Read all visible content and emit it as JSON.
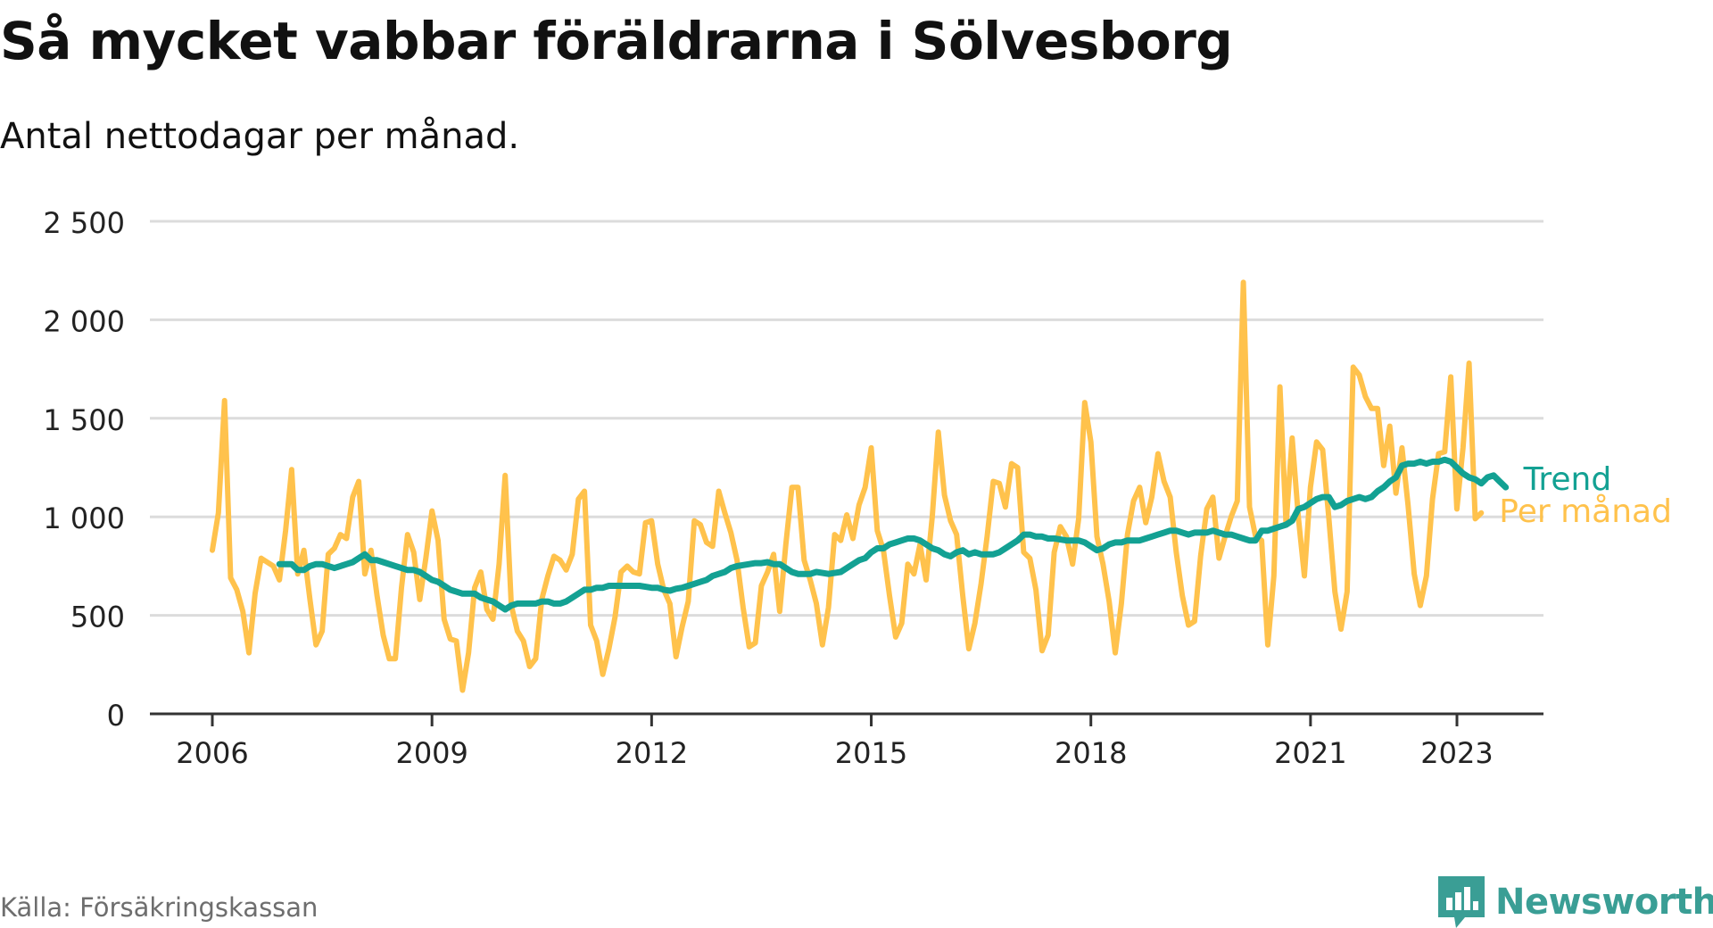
{
  "title": "Så mycket vabbar föräldrarna i Sölvesborg",
  "subtitle": "Antal nettodagar per månad.",
  "source": "Källa: Försäkringskassan",
  "brand": "Newsworthy",
  "colors": {
    "monthly": "#ffc24c",
    "trend": "#13a193",
    "grid": "#dcdcdc",
    "axis": "#333333",
    "brand": "#3a9e95"
  },
  "chart_data": {
    "type": "line",
    "title": "Så mycket vabbar föräldrarna i Sölvesborg",
    "ylabel": "Antal nettodagar per månad",
    "ylim": [
      0,
      2500
    ],
    "yticks": [
      0,
      500,
      1000,
      1500,
      2000,
      2500
    ],
    "ytick_labels": [
      "0",
      "500",
      "1 000",
      "1 500",
      "2 000",
      "2 500"
    ],
    "xlim": [
      2006.0,
      2023.5
    ],
    "xticks": [
      2006,
      2009,
      2012,
      2015,
      2018,
      2021,
      2023
    ],
    "xtick_labels": [
      "2006",
      "2009",
      "2012",
      "2015",
      "2018",
      "2021",
      "2023"
    ],
    "series": [
      {
        "name": "Per månad",
        "label": "Per månad",
        "x_start": 2006.0,
        "step": 0.08333,
        "values": [
          830,
          1020,
          1590,
          690,
          630,
          520,
          310,
          610,
          790,
          770,
          750,
          680,
          930,
          1240,
          710,
          830,
          580,
          350,
          420,
          810,
          840,
          910,
          890,
          1100,
          1180,
          710,
          830,
          600,
          400,
          280,
          280,
          640,
          910,
          820,
          580,
          790,
          1030,
          880,
          480,
          380,
          370,
          120,
          310,
          640,
          720,
          530,
          480,
          760,
          1210,
          550,
          420,
          370,
          240,
          280,
          580,
          700,
          800,
          780,
          730,
          810,
          1090,
          1130,
          450,
          370,
          200,
          330,
          490,
          720,
          750,
          720,
          710,
          970,
          980,
          760,
          630,
          560,
          290,
          440,
          570,
          980,
          960,
          870,
          850,
          1130,
          1020,
          920,
          780,
          540,
          340,
          360,
          650,
          720,
          810,
          520,
          860,
          1150,
          1150,
          780,
          680,
          560,
          350,
          540,
          910,
          880,
          1010,
          890,
          1060,
          1150,
          1350,
          930,
          830,
          600,
          390,
          460,
          760,
          710,
          860,
          680,
          1000,
          1430,
          1110,
          980,
          910,
          600,
          330,
          460,
          660,
          900,
          1180,
          1170,
          1050,
          1270,
          1250,
          820,
          790,
          630,
          320,
          400,
          820,
          950,
          900,
          760,
          990,
          1580,
          1380,
          900,
          760,
          570,
          310,
          560,
          910,
          1080,
          1150,
          970,
          1100,
          1320,
          1180,
          1100,
          820,
          600,
          450,
          470,
          800,
          1040,
          1100,
          790,
          900,
          1000,
          1080,
          2190,
          1050,
          900,
          880,
          350,
          700,
          1660,
          960,
          1400,
          1000,
          700,
          1150,
          1380,
          1340,
          1000,
          620,
          430,
          620,
          1760,
          1720,
          1610,
          1550,
          1550,
          1260,
          1460,
          1120,
          1350,
          1060,
          710,
          550,
          700,
          1090,
          1320,
          1330,
          1710,
          1040,
          1350,
          1780,
          990,
          1020
        ]
      },
      {
        "name": "Trend",
        "label": "Trend",
        "x_start": 2006.917,
        "step": 0.08333,
        "values": [
          760,
          760,
          760,
          730,
          730,
          750,
          760,
          760,
          750,
          740,
          750,
          760,
          770,
          790,
          810,
          780,
          780,
          770,
          760,
          750,
          740,
          730,
          730,
          720,
          700,
          680,
          670,
          650,
          630,
          620,
          610,
          610,
          610,
          590,
          580,
          570,
          550,
          530,
          550,
          560,
          560,
          560,
          560,
          570,
          570,
          560,
          560,
          570,
          590,
          610,
          630,
          630,
          640,
          640,
          650,
          650,
          650,
          650,
          650,
          650,
          645,
          640,
          640,
          630,
          625,
          635,
          640,
          650,
          660,
          670,
          680,
          700,
          710,
          720,
          740,
          750,
          755,
          760,
          765,
          765,
          770,
          760,
          760,
          740,
          720,
          710,
          710,
          710,
          720,
          715,
          710,
          715,
          720,
          740,
          760,
          780,
          790,
          820,
          840,
          840,
          860,
          870,
          880,
          890,
          890,
          880,
          860,
          840,
          830,
          810,
          800,
          820,
          830,
          810,
          820,
          810,
          810,
          810,
          820,
          840,
          860,
          880,
          910,
          910,
          900,
          900,
          890,
          890,
          885,
          880,
          880,
          880,
          870,
          850,
          830,
          840,
          860,
          870,
          870,
          880,
          880,
          880,
          890,
          900,
          910,
          920,
          930,
          930,
          920,
          910,
          920,
          920,
          920,
          930,
          920,
          910,
          910,
          900,
          890,
          880,
          880,
          930,
          930,
          940,
          950,
          960,
          980,
          1040,
          1050,
          1070,
          1090,
          1100,
          1100,
          1050,
          1060,
          1080,
          1090,
          1100,
          1090,
          1100,
          1130,
          1150,
          1180,
          1200,
          1260,
          1270,
          1270,
          1280,
          1270,
          1280,
          1280,
          1290,
          1280,
          1250,
          1220,
          1200,
          1190,
          1170,
          1200,
          1210,
          1180,
          1150
        ]
      }
    ]
  }
}
